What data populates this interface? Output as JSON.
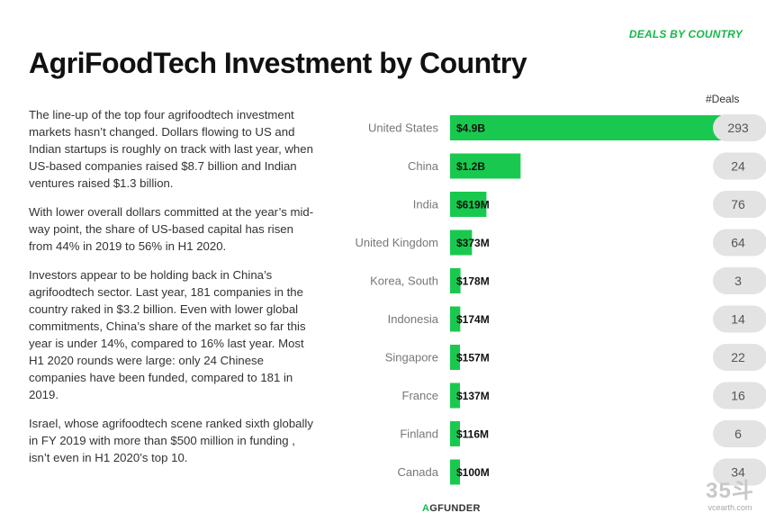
{
  "section_tag": "DEALS BY COUNTRY",
  "title": "AgriFoodTech Investment by Country",
  "paragraphs": [
    "The line-up of the top four agrifoodtech investment markets hasn’t changed. Dollars flowing to US and Indian startups is roughly on track with last year, when US-based companies raised $8.7 billion and Indian ventures raised $1.3 billion.",
    "With lower overall dollars committed at the year’s mid-way point, the share of US-based capital has risen from 44% in 2019 to 56% in H1 2020.",
    "Investors appear to be holding back in China’s agrifoodtech sector. Last year, 181 companies in the country raked in $3.2 billion. Even with lower global commitments, China’s share of the market so far this year is under 14%, compared to 16% last year. Most H1 2020 rounds were large: only 24 Chinese companies have been funded, compared to 181 in 2019.",
    "Israel, whose agrifoodtech scene ranked sixth globally in FY 2019 with more than $500 million in funding , isn’t even in H1 2020’s top 10."
  ],
  "chart_data": {
    "type": "bar",
    "orientation": "horizontal",
    "title": "AgriFoodTech Investment by Country",
    "deals_header": "#Deals",
    "categories": [
      "United States",
      "China",
      "India",
      "United Kingdom",
      "Korea, South",
      "Indonesia",
      "Singapore",
      "France",
      "Finland",
      "Canada"
    ],
    "values_musd": [
      4900,
      1200,
      619,
      373,
      178,
      174,
      157,
      137,
      116,
      100
    ],
    "value_labels": [
      "$4.9B",
      "$1.2B",
      "$619M",
      "$373M",
      "$178M",
      "$174M",
      "$157M",
      "$137M",
      "$116M",
      "$100M"
    ],
    "deals": [
      293,
      24,
      76,
      64,
      3,
      14,
      22,
      16,
      6,
      34
    ],
    "bar_color": "#19c94f",
    "deal_badge_color": "#e3e3e3"
  },
  "footer": {
    "logo_leaf": "A",
    "logo_text": "GFUNDER",
    "watermark_main": "35斗",
    "watermark_site": "vcearth.com"
  }
}
